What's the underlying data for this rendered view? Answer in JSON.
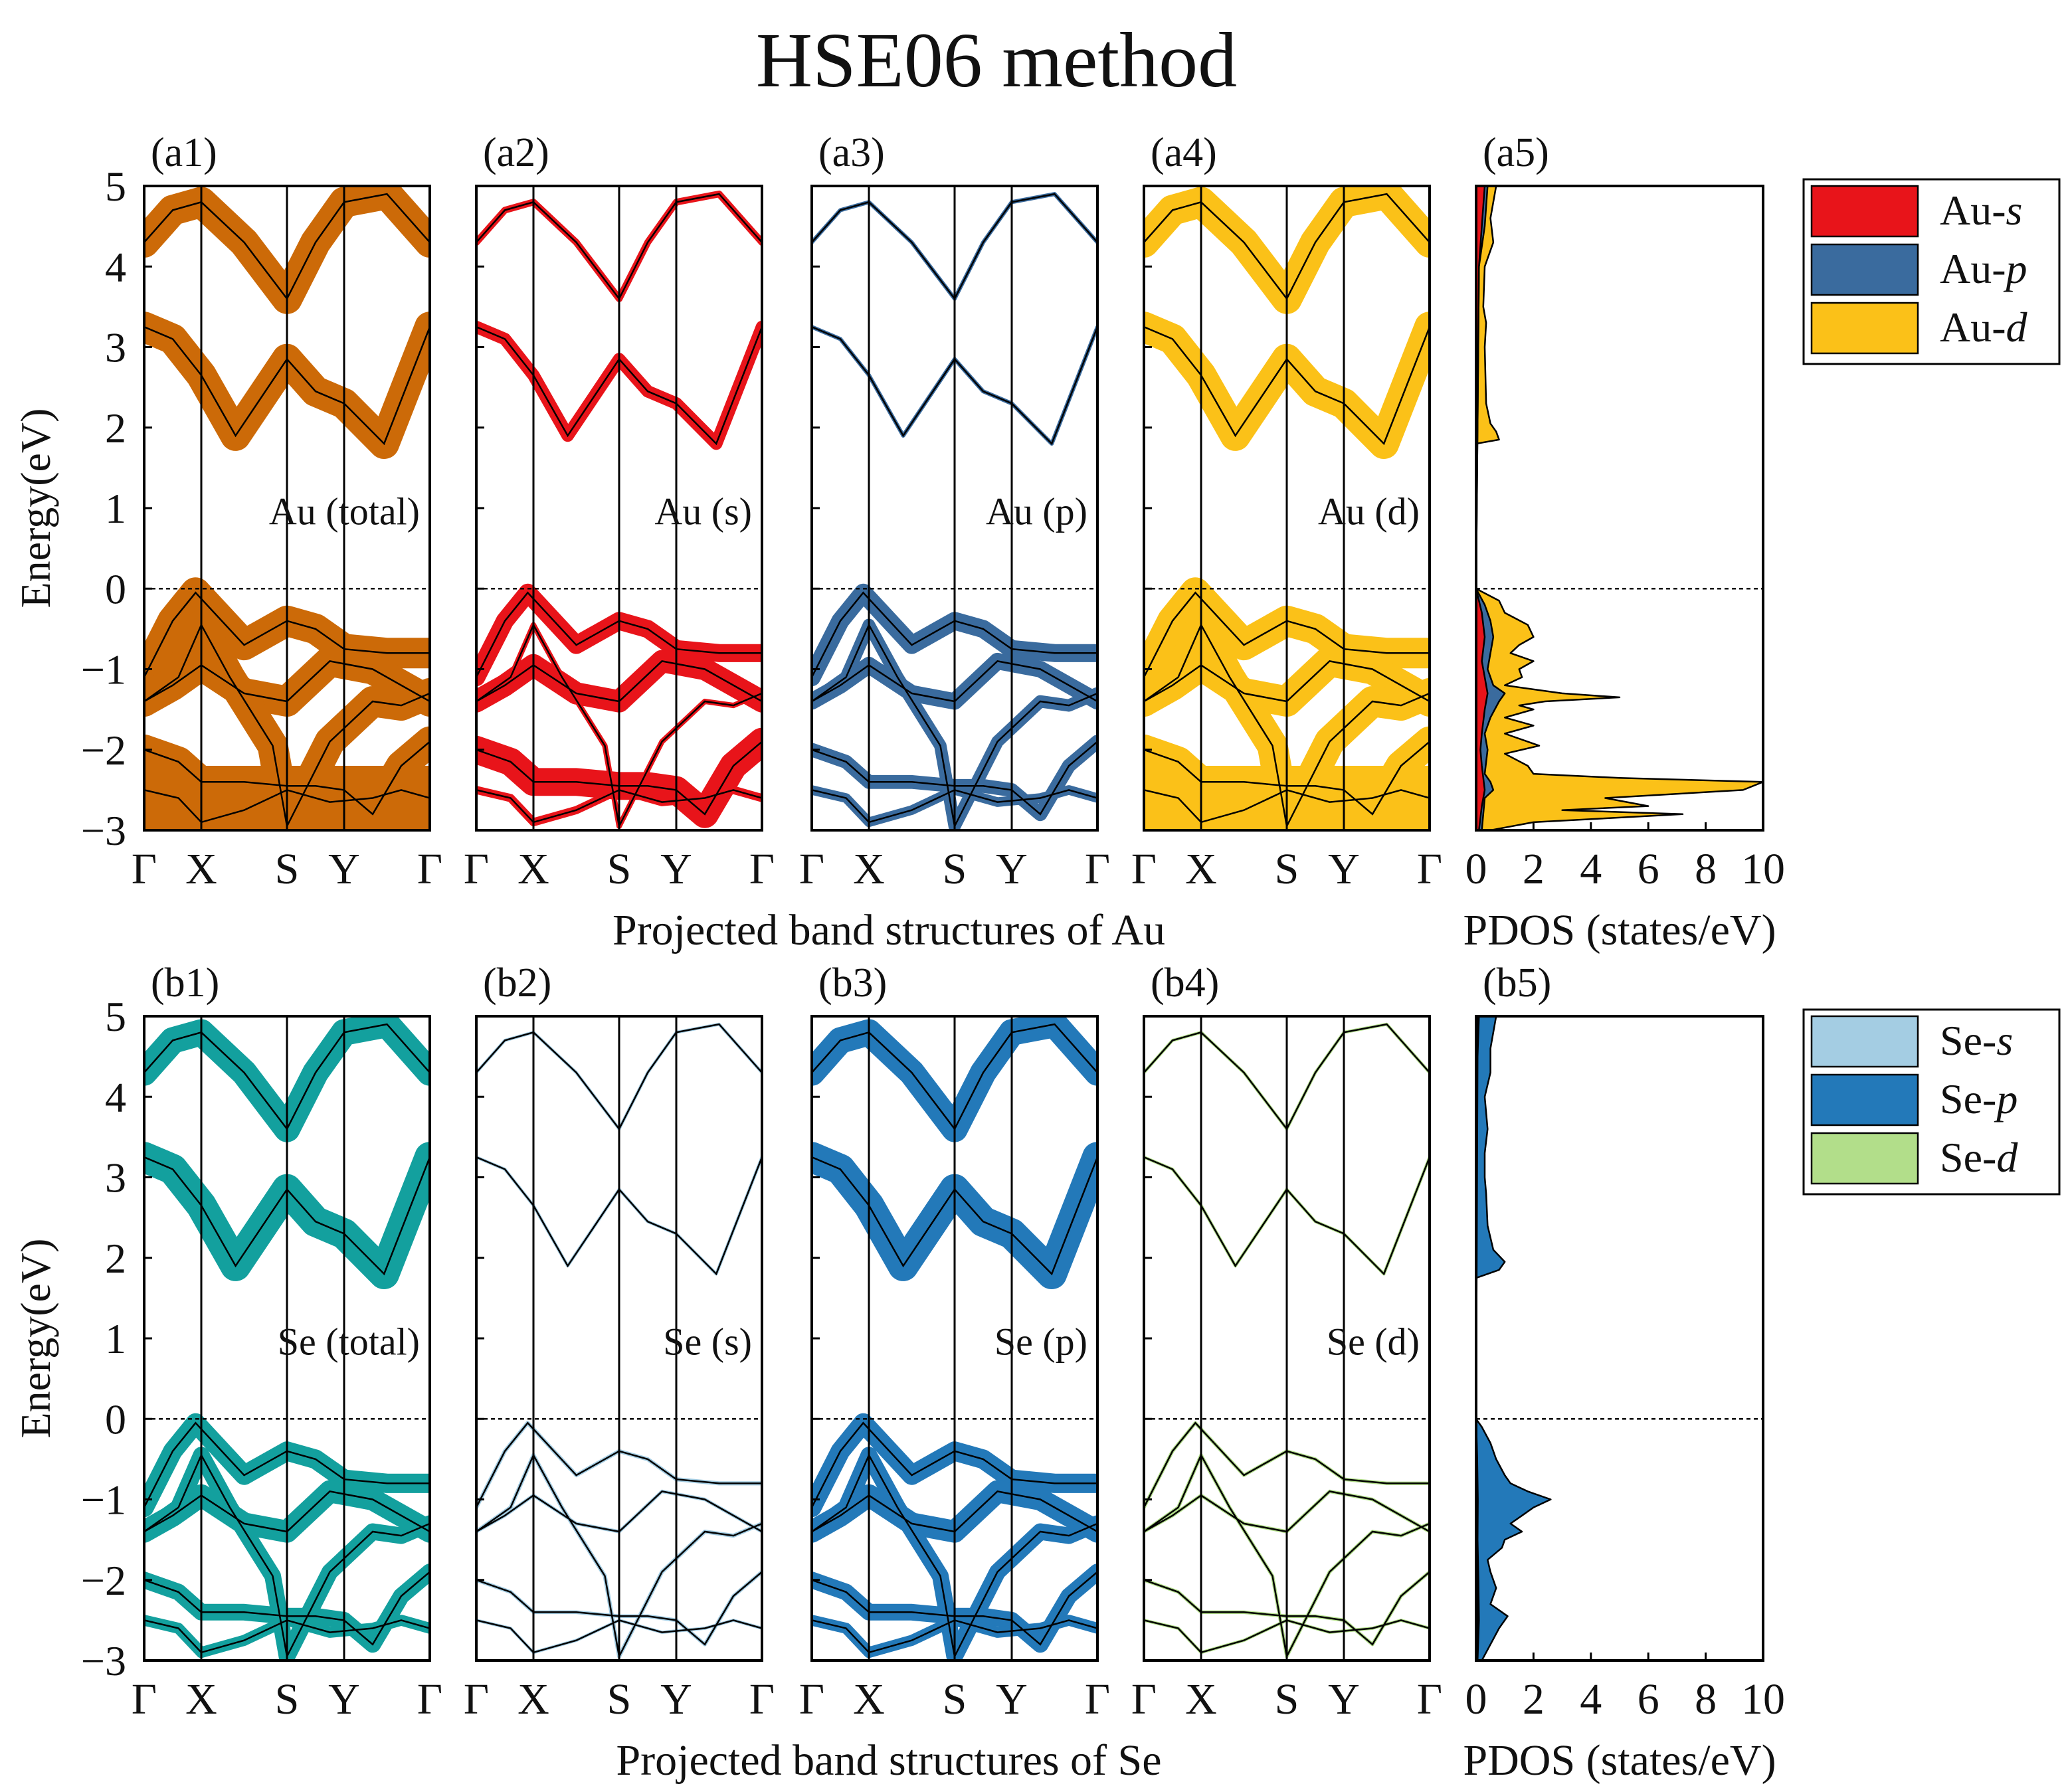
{
  "title": "HSE06 method",
  "colors": {
    "au_total": "#cc6a08",
    "au_s": "#e8141a",
    "au_p": "#3a6b9e",
    "au_d": "#fbc118",
    "se_total": "#13a09e",
    "se_s": "#a4cde3",
    "se_p": "#2379b9",
    "se_d": "#b2de8a",
    "bands": "#000000"
  },
  "rows": [
    {
      "id": "a",
      "xlabel": "Projected band structures of Au",
      "dos_xlabel": "PDOS (states/eV)",
      "panels": [
        {
          "label": "(a1)",
          "annotation": "Au (total)",
          "color_key": "au_total",
          "weights": [
            1.0,
            1.0,
            1.0,
            1.0,
            1.0,
            1.0,
            1.0
          ]
        },
        {
          "label": "(a2)",
          "annotation": "Au (s)",
          "color_key": "au_s",
          "weights": [
            0.15,
            0.35,
            0.55,
            0.7,
            0.1,
            0.9,
            0.2
          ]
        },
        {
          "label": "(a3)",
          "annotation": "Au (p)",
          "color_key": "au_p",
          "weights": [
            0.05,
            0.05,
            0.55,
            0.5,
            0.35,
            0.4,
            0.25
          ]
        },
        {
          "label": "(a4)",
          "annotation": "Au (d)",
          "color_key": "au_d",
          "weights": [
            1.0,
            1.0,
            1.0,
            1.0,
            1.0,
            1.0,
            1.0
          ]
        }
      ],
      "dos": {
        "label": "(a5)",
        "legend": [
          {
            "label": "Au-",
            "orbital": "s",
            "color_key": "au_s"
          },
          {
            "label": "Au-",
            "orbital": "p",
            "color_key": "au_p"
          },
          {
            "label": "Au-",
            "orbital": "d",
            "color_key": "au_d"
          }
        ]
      }
    },
    {
      "id": "b",
      "xlabel": "Projected band structures of Se",
      "dos_xlabel": "PDOS (states/eV)",
      "panels": [
        {
          "label": "(b1)",
          "annotation": "Se (total)",
          "color_key": "se_total",
          "weights": [
            0.85,
            1.0,
            0.6,
            0.7,
            0.5,
            0.5,
            0.3
          ]
        },
        {
          "label": "(b2)",
          "annotation": "Se (s)",
          "color_key": "se_s",
          "weights": [
            0.02,
            0.02,
            0.05,
            0.03,
            0.05,
            0.04,
            0.02
          ]
        },
        {
          "label": "(b3)",
          "annotation": "Se (p)",
          "color_key": "se_p",
          "weights": [
            0.85,
            1.0,
            0.6,
            0.7,
            0.5,
            0.5,
            0.3
          ]
        },
        {
          "label": "(b4)",
          "annotation": "Se (d)",
          "color_key": "se_d",
          "weights": [
            0.02,
            0.02,
            0.03,
            0.03,
            0.03,
            0.03,
            0.02
          ]
        }
      ],
      "dos": {
        "label": "(b5)",
        "legend": [
          {
            "label": "Se-",
            "orbital": "s",
            "color_key": "se_s"
          },
          {
            "label": "Se-",
            "orbital": "p",
            "color_key": "se_p"
          },
          {
            "label": "Se-",
            "orbital": "d",
            "color_key": "se_d"
          }
        ]
      }
    }
  ],
  "chart_data": {
    "type": "line",
    "title": "HSE06 method",
    "ylabel": "Energy(eV)",
    "ylim": [
      -3,
      5
    ],
    "yticks": [
      -3,
      -2,
      -1,
      0,
      1,
      2,
      3,
      4,
      5
    ],
    "kpath": [
      "Γ",
      "X",
      "S",
      "Y",
      "Γ"
    ],
    "kpath_positions": [
      0,
      0.2,
      0.5,
      0.7,
      1.0
    ],
    "fermi_level": 0,
    "dos_xlim": [
      0,
      10
    ],
    "dos_xticks": [
      0,
      2,
      4,
      6,
      8,
      10
    ],
    "bands": [
      {
        "name": "CB2",
        "k": [
          0,
          0.1,
          0.2,
          0.35,
          0.5,
          0.6,
          0.7,
          0.85,
          1.0
        ],
        "energy": [
          4.3,
          4.7,
          4.8,
          4.3,
          3.6,
          4.3,
          4.8,
          4.9,
          4.3
        ]
      },
      {
        "name": "CB1",
        "k": [
          0,
          0.1,
          0.2,
          0.32,
          0.5,
          0.6,
          0.7,
          0.84,
          1.0
        ],
        "energy": [
          3.25,
          3.1,
          2.65,
          1.9,
          2.85,
          2.45,
          2.3,
          1.8,
          3.25
        ]
      },
      {
        "name": "VB1",
        "k": [
          0,
          0.1,
          0.18,
          0.35,
          0.5,
          0.6,
          0.7,
          0.85,
          1.0
        ],
        "energy": [
          -1.1,
          -0.4,
          -0.05,
          -0.7,
          -0.4,
          -0.5,
          -0.75,
          -0.8,
          -0.8
        ]
      },
      {
        "name": "VB2",
        "k": [
          0,
          0.1,
          0.2,
          0.35,
          0.5,
          0.65,
          0.8,
          1.0
        ],
        "energy": [
          -1.4,
          -1.2,
          -0.95,
          -1.3,
          -1.4,
          -0.9,
          -1.0,
          -1.4
        ]
      },
      {
        "name": "VB3",
        "k": [
          0,
          0.12,
          0.2,
          0.3,
          0.45,
          0.5,
          0.65,
          0.8,
          0.9,
          1.0
        ],
        "energy": [
          -1.4,
          -1.1,
          -0.45,
          -1.1,
          -1.95,
          -2.95,
          -1.9,
          -1.4,
          -1.45,
          -1.3
        ]
      },
      {
        "name": "VB4",
        "k": [
          0,
          0.12,
          0.2,
          0.35,
          0.5,
          0.6,
          0.7,
          0.8,
          0.9,
          1.0
        ],
        "energy": [
          -2.0,
          -2.15,
          -2.4,
          -2.4,
          -2.45,
          -2.45,
          -2.5,
          -2.8,
          -2.2,
          -1.9
        ]
      },
      {
        "name": "VB5",
        "k": [
          0,
          0.12,
          0.2,
          0.35,
          0.5,
          0.65,
          0.8,
          0.9,
          1.0
        ],
        "energy": [
          -2.5,
          -2.6,
          -2.9,
          -2.75,
          -2.5,
          -2.65,
          -2.6,
          -2.5,
          -2.6
        ]
      }
    ],
    "pdos": [
      {
        "panel": "(a5)",
        "series": [
          {
            "name": "Au-d",
            "color_key": "au_d",
            "energy": [
              -3,
              -2.9,
              -2.8,
              -2.75,
              -2.7,
              -2.6,
              -2.5,
              -2.4,
              -2.35,
              -2.3,
              -2.2,
              -2.05,
              -1.95,
              -1.8,
              -1.7,
              -1.6,
              -1.5,
              -1.45,
              -1.4,
              -1.35,
              -1.3,
              -1.2,
              -1.1,
              -1.0,
              -0.9,
              -0.8,
              -0.7,
              -0.6,
              -0.45,
              -0.3,
              -0.15,
              0,
              1.8,
              1.85,
              1.95,
              2.05,
              2.3,
              3.0,
              3.3,
              3.5,
              4.0,
              4.3,
              4.6,
              5.0
            ],
            "value": [
              0.5,
              2.0,
              7.2,
              3.0,
              6.0,
              4.5,
              9.3,
              10.0,
              5.0,
              2.0,
              1.8,
              1.0,
              2.2,
              1.0,
              2.0,
              1.0,
              2.0,
              1.5,
              2.4,
              5.0,
              3.0,
              1.0,
              1.6,
              1.5,
              2.0,
              1.2,
              1.5,
              2.0,
              1.8,
              1.0,
              0.8,
              0,
              0,
              0.8,
              0.7,
              0.5,
              0.35,
              0.3,
              0.35,
              0.25,
              0.3,
              0.6,
              0.5,
              0.7
            ]
          },
          {
            "name": "Au-p",
            "color_key": "au_p",
            "energy": [
              -3,
              -2.6,
              -2.5,
              -2.4,
              -2.3,
              -2.0,
              -1.8,
              -1.6,
              -1.4,
              -1.3,
              -1.2,
              -1.0,
              -0.8,
              -0.6,
              -0.4,
              -0.2,
              0,
              4.0,
              4.5,
              5.0
            ],
            "value": [
              0.2,
              0.3,
              0.6,
              0.5,
              0.3,
              0.4,
              0.3,
              0.5,
              0.8,
              1.0,
              0.6,
              0.4,
              0.5,
              0.6,
              0.5,
              0.3,
              0,
              0.1,
              0.3,
              0.4
            ]
          },
          {
            "name": "Au-s",
            "color_key": "au_s",
            "energy": [
              -3,
              -2.7,
              -2.5,
              -2.2,
              -2.0,
              -1.8,
              -1.5,
              -1.3,
              -1.1,
              -0.9,
              -0.6,
              -0.3,
              0,
              4.0,
              4.5,
              5.0
            ],
            "value": [
              0.1,
              0.2,
              0.3,
              0.2,
              0.15,
              0.2,
              0.3,
              0.4,
              0.3,
              0.2,
              0.3,
              0.2,
              0,
              0.1,
              0.2,
              0.3
            ]
          }
        ]
      },
      {
        "panel": "(b5)",
        "series": [
          {
            "name": "Se-p",
            "color_key": "se_p",
            "energy": [
              -3,
              -2.8,
              -2.6,
              -2.45,
              -2.3,
              -2.1,
              -1.9,
              -1.75,
              -1.6,
              -1.5,
              -1.4,
              -1.3,
              -1.2,
              -1.1,
              -1.0,
              -0.9,
              -0.8,
              -0.7,
              -0.5,
              -0.3,
              -0.1,
              0,
              1.75,
              1.85,
              1.95,
              2.1,
              2.4,
              2.8,
              3.0,
              3.3,
              3.6,
              4.0,
              4.3,
              4.6,
              5.0
            ],
            "value": [
              0.2,
              0.5,
              0.8,
              1.1,
              0.5,
              0.7,
              0.5,
              0.4,
              0.9,
              1.0,
              1.6,
              1.2,
              1.6,
              2.0,
              2.6,
              1.8,
              1.2,
              1.0,
              0.7,
              0.5,
              0.2,
              0,
              0,
              0.8,
              1.0,
              0.6,
              0.4,
              0.35,
              0.3,
              0.3,
              0.4,
              0.3,
              0.5,
              0.5,
              0.7
            ]
          },
          {
            "name": "Se-s",
            "color_key": "se_s",
            "energy": [
              -3,
              -2.5,
              -2.0,
              -1.5,
              -1.0,
              -0.5,
              0,
              4.5,
              5.0
            ],
            "value": [
              0.05,
              0.1,
              0.08,
              0.05,
              0.06,
              0.04,
              0,
              0.05,
              0.1
            ]
          },
          {
            "name": "Se-d",
            "color_key": "se_d",
            "energy": [
              -3,
              -2.5,
              -2.0,
              -1.5,
              -1.0,
              -0.5,
              0,
              4.5,
              5.0
            ],
            "value": [
              0.03,
              0.05,
              0.04,
              0.03,
              0.04,
              0.03,
              0,
              0.03,
              0.05
            ]
          }
        ]
      }
    ]
  }
}
